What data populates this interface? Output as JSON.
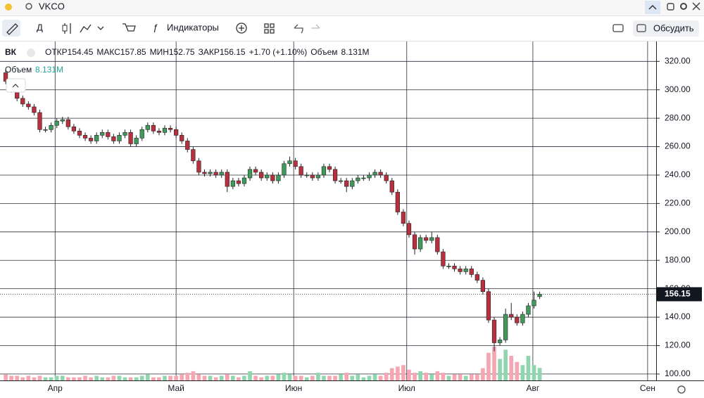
{
  "toolbar": {
    "symbol": "VKCO",
    "interval": "Д",
    "indicators": "Индикаторы",
    "discuss": "Обсудить"
  },
  "legend": {
    "name": "ВК",
    "open_label": "ОТКР",
    "open": 154.45,
    "high_label": "МАКС",
    "high": 157.85,
    "low_label": "МИН",
    "low": 152.75,
    "close_label": "ЗАКР",
    "close": 156.15,
    "change": "+1.70 (+1.10%)",
    "volume_label": "Объем",
    "volume": "8.131M"
  },
  "volume_pane": {
    "label": "Объем",
    "value": "8.131M"
  },
  "chart_data": {
    "type": "candlestick",
    "up_color": "#3f9a5c",
    "down_color": "#b8303f",
    "volume_up_color": "#8fd6ae",
    "volume_down_color": "#f5a6b2",
    "grid": true,
    "xlim": [
      -1,
      114.5
    ],
    "xticks": [
      {
        "value": 8.7,
        "label": "Апр"
      },
      {
        "value": 30,
        "label": "Май"
      },
      {
        "value": 50.7,
        "label": "Июн"
      },
      {
        "value": 70.6,
        "label": "Июл"
      },
      {
        "value": 92.8,
        "label": "Авг"
      },
      {
        "value": 113,
        "label": "Сен"
      }
    ],
    "ylim": [
      95.5,
      334
    ],
    "yticks": [
      {
        "value": 100,
        "label": "100.00"
      },
      {
        "value": 120,
        "label": "120.00"
      },
      {
        "value": 140,
        "label": "140.00"
      },
      {
        "value": 160,
        "label": "160.00"
      },
      {
        "value": 180,
        "label": "180.00"
      },
      {
        "value": 200,
        "label": "200.00"
      },
      {
        "value": 220,
        "label": "220.00"
      },
      {
        "value": 240,
        "label": "240.00"
      },
      {
        "value": 260,
        "label": "260.00"
      },
      {
        "value": 280,
        "label": "280.00"
      },
      {
        "value": 300,
        "label": "300.00"
      },
      {
        "value": 320,
        "label": "320.00"
      }
    ],
    "vlim": [
      0,
      55
    ],
    "open": [
      312,
      306,
      300,
      294,
      290,
      288,
      284,
      272,
      272,
      275,
      278,
      279,
      274,
      271,
      268,
      266,
      264,
      268,
      270,
      267,
      264,
      268,
      270,
      262,
      266,
      272,
      275,
      271,
      270,
      273,
      272,
      268,
      264,
      258,
      250,
      242,
      241,
      242,
      240,
      242,
      232,
      236,
      234,
      238,
      244,
      242,
      238,
      240,
      236,
      240,
      248,
      250,
      246,
      240,
      240,
      238,
      240,
      246,
      244,
      236,
      236,
      232,
      236,
      238,
      238,
      240,
      242,
      240,
      236,
      228,
      214,
      206,
      198,
      188,
      196,
      194,
      196,
      186,
      176,
      176,
      174,
      172,
      174,
      170,
      166,
      158,
      138,
      122,
      124,
      142,
      140,
      136,
      142,
      148,
      154.45
    ],
    "high": [
      314,
      308,
      302,
      296,
      292,
      290,
      286,
      274,
      277,
      280,
      281,
      281,
      276,
      273,
      270,
      268,
      270,
      272,
      272,
      269,
      270,
      272,
      272,
      268,
      274,
      277,
      277,
      273,
      275,
      275,
      274,
      270,
      266,
      260,
      252,
      244,
      244,
      244,
      244,
      244,
      238,
      238,
      240,
      246,
      246,
      244,
      242,
      242,
      242,
      250,
      253,
      252,
      248,
      242,
      242,
      242,
      248,
      248,
      246,
      238,
      238,
      238,
      240,
      240,
      242,
      244,
      244,
      242,
      238,
      230,
      216,
      208,
      200,
      198,
      198,
      200,
      198,
      188,
      178,
      178,
      176,
      176,
      176,
      172,
      168,
      160,
      140,
      126,
      146,
      150,
      142,
      144,
      150,
      158,
      157.85
    ],
    "low": [
      304,
      298,
      292,
      288,
      286,
      282,
      270,
      270,
      270,
      273,
      276,
      272,
      269,
      266,
      264,
      262,
      262,
      266,
      265,
      262,
      262,
      266,
      260,
      260,
      264,
      270,
      269,
      268,
      268,
      270,
      266,
      262,
      256,
      248,
      240,
      239,
      239,
      238,
      238,
      228,
      230,
      232,
      232,
      236,
      240,
      236,
      236,
      234,
      234,
      238,
      246,
      244,
      238,
      238,
      236,
      236,
      238,
      242,
      234,
      234,
      228,
      230,
      234,
      236,
      236,
      238,
      238,
      234,
      226,
      212,
      204,
      196,
      184,
      186,
      192,
      192,
      184,
      174,
      174,
      172,
      170,
      170,
      168,
      164,
      156,
      136,
      116,
      120,
      122,
      138,
      134,
      134,
      140,
      146,
      152.75
    ],
    "close": [
      306,
      300,
      294,
      290,
      288,
      284,
      272,
      272,
      275,
      278,
      279,
      274,
      271,
      268,
      266,
      264,
      268,
      270,
      267,
      264,
      268,
      270,
      262,
      266,
      272,
      275,
      271,
      270,
      273,
      272,
      268,
      264,
      258,
      250,
      242,
      241,
      242,
      240,
      242,
      232,
      236,
      234,
      238,
      244,
      242,
      238,
      240,
      236,
      240,
      248,
      250,
      246,
      240,
      240,
      238,
      240,
      246,
      244,
      236,
      236,
      232,
      236,
      238,
      238,
      240,
      242,
      240,
      236,
      228,
      214,
      206,
      198,
      188,
      196,
      194,
      196,
      186,
      176,
      176,
      174,
      172,
      174,
      170,
      166,
      158,
      138,
      122,
      124,
      142,
      140,
      136,
      142,
      148,
      152,
      156.15
    ],
    "volume": [
      4,
      3,
      3,
      2,
      3,
      2,
      3,
      2,
      2,
      3,
      3,
      2,
      2,
      2,
      3,
      2,
      3,
      2,
      2,
      3,
      3,
      2,
      2,
      2,
      3,
      4,
      2,
      2,
      3,
      3,
      3,
      4,
      5,
      6,
      4,
      3,
      3,
      2,
      3,
      4,
      3,
      2,
      3,
      6,
      3,
      2,
      3,
      3,
      4,
      5,
      4,
      3,
      3,
      2,
      3,
      5,
      3,
      3,
      3,
      4,
      5,
      3,
      4,
      2,
      3,
      4,
      3,
      5,
      8,
      9,
      10,
      7,
      5,
      6,
      5,
      4,
      6,
      5,
      3,
      4,
      4,
      3,
      4,
      4,
      8,
      18,
      22,
      14,
      20,
      16,
      12,
      10,
      16,
      10,
      8.131
    ]
  }
}
